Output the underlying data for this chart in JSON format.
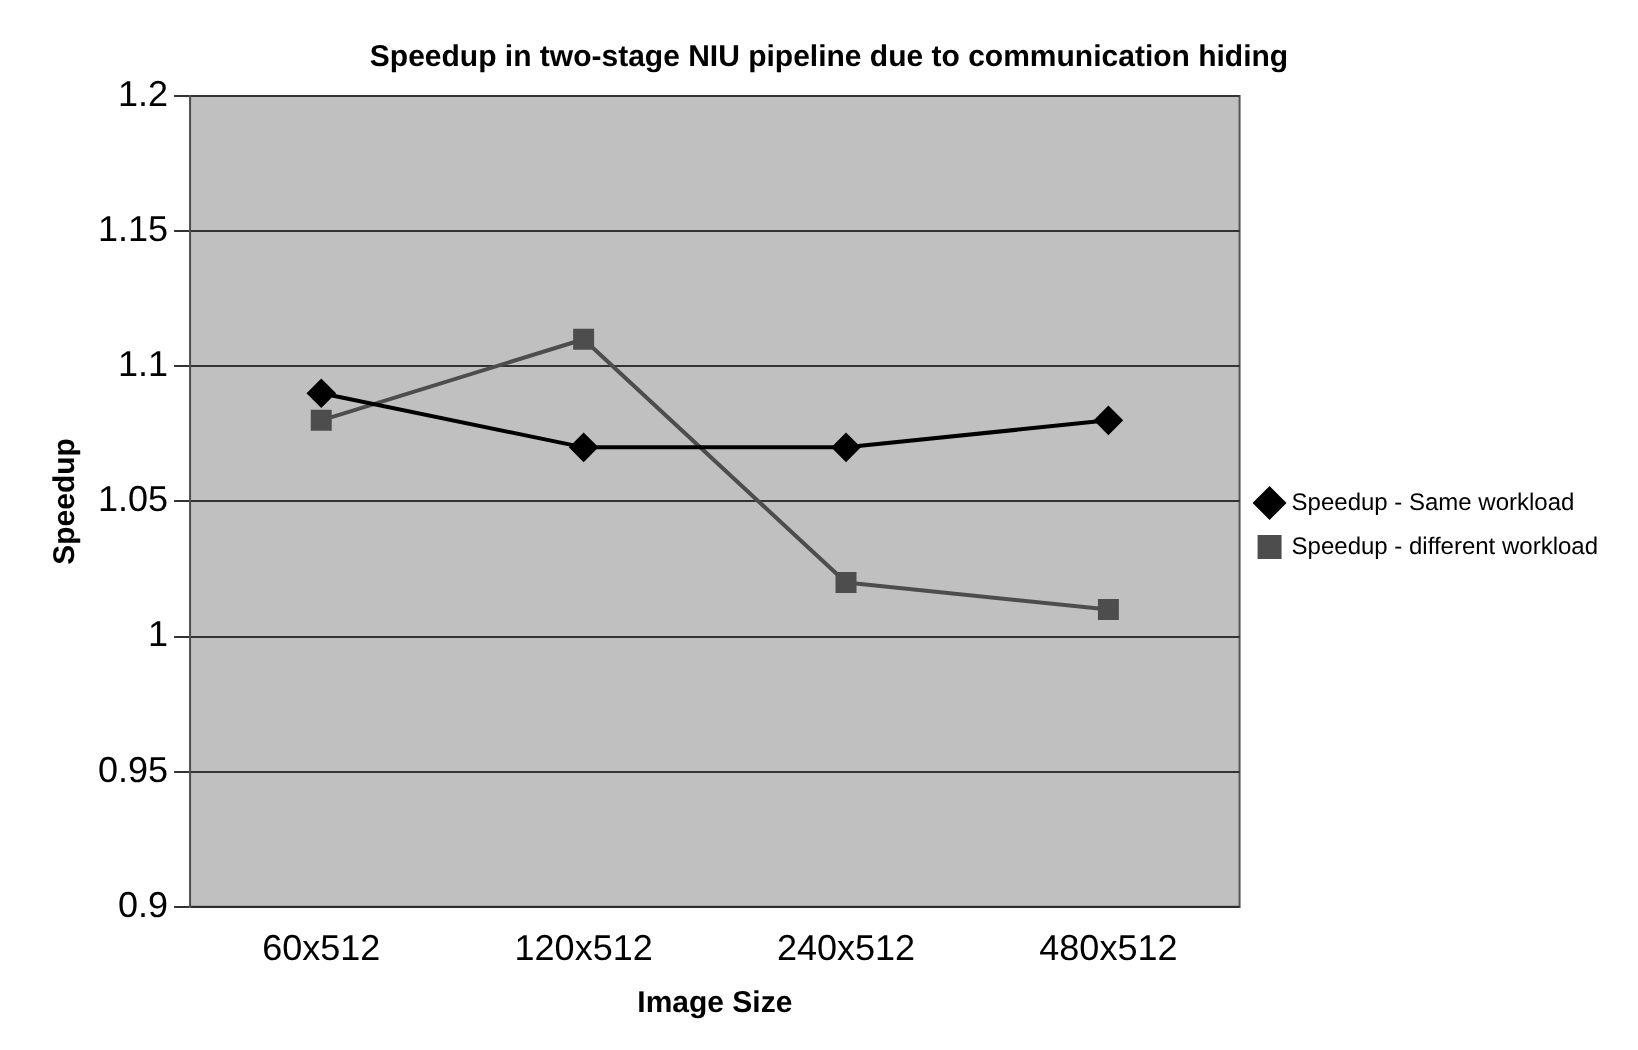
{
  "chart_data": {
    "type": "line",
    "title": "Speedup in two-stage NIU pipeline due to communication hiding",
    "xlabel": "Image Size",
    "ylabel": "Speedup",
    "categories": [
      "60x512",
      "120x512",
      "240x512",
      "480x512"
    ],
    "series": [
      {
        "name": "Speedup - Same workload",
        "color": "#000000",
        "marker": "diamond",
        "values": [
          1.09,
          1.07,
          1.07,
          1.08
        ]
      },
      {
        "name": "Speedup - different workload",
        "color": "#4d4d4d",
        "marker": "square",
        "values": [
          1.08,
          1.11,
          1.02,
          1.01
        ]
      }
    ],
    "ylim": [
      0.9,
      1.2
    ],
    "yticks": [
      0.9,
      0.95,
      1,
      1.05,
      1.1,
      1.15,
      1.2
    ],
    "grid": "y",
    "legend": "right",
    "line_style": "solid"
  }
}
